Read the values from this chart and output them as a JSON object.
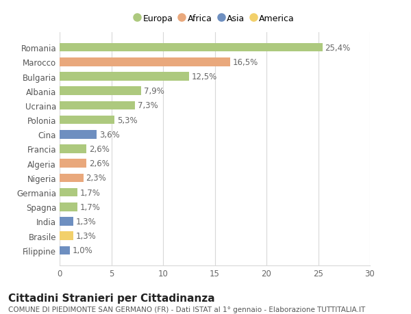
{
  "categories": [
    "Filippine",
    "Brasile",
    "India",
    "Spagna",
    "Germania",
    "Nigeria",
    "Algeria",
    "Francia",
    "Cina",
    "Polonia",
    "Ucraina",
    "Albania",
    "Bulgaria",
    "Marocco",
    "Romania"
  ],
  "values": [
    1.0,
    1.3,
    1.3,
    1.7,
    1.7,
    2.3,
    2.6,
    2.6,
    3.6,
    5.3,
    7.3,
    7.9,
    12.5,
    16.5,
    25.4
  ],
  "labels": [
    "1,0%",
    "1,3%",
    "1,3%",
    "1,7%",
    "1,7%",
    "2,3%",
    "2,6%",
    "2,6%",
    "3,6%",
    "5,3%",
    "7,3%",
    "7,9%",
    "12,5%",
    "16,5%",
    "25,4%"
  ],
  "continents": [
    "Asia",
    "America",
    "Asia",
    "Europa",
    "Europa",
    "Africa",
    "Africa",
    "Europa",
    "Asia",
    "Europa",
    "Europa",
    "Europa",
    "Europa",
    "Africa",
    "Europa"
  ],
  "continent_colors": {
    "Europa": "#adc97e",
    "Africa": "#e9a87c",
    "Asia": "#6e8fc0",
    "America": "#f2d06b"
  },
  "legend_order": [
    "Europa",
    "Africa",
    "Asia",
    "America"
  ],
  "xlim": [
    0,
    30
  ],
  "xticks": [
    0,
    5,
    10,
    15,
    20,
    25,
    30
  ],
  "title": "Cittadini Stranieri per Cittadinanza",
  "subtitle": "COMUNE DI PIEDIMONTE SAN GERMANO (FR) - Dati ISTAT al 1° gennaio - Elaborazione TUTTITALIA.IT",
  "background_color": "#ffffff",
  "grid_color": "#d8d8d8",
  "bar_height": 0.6,
  "label_fontsize": 8.5,
  "tick_fontsize": 8.5,
  "title_fontsize": 11,
  "subtitle_fontsize": 7.5
}
